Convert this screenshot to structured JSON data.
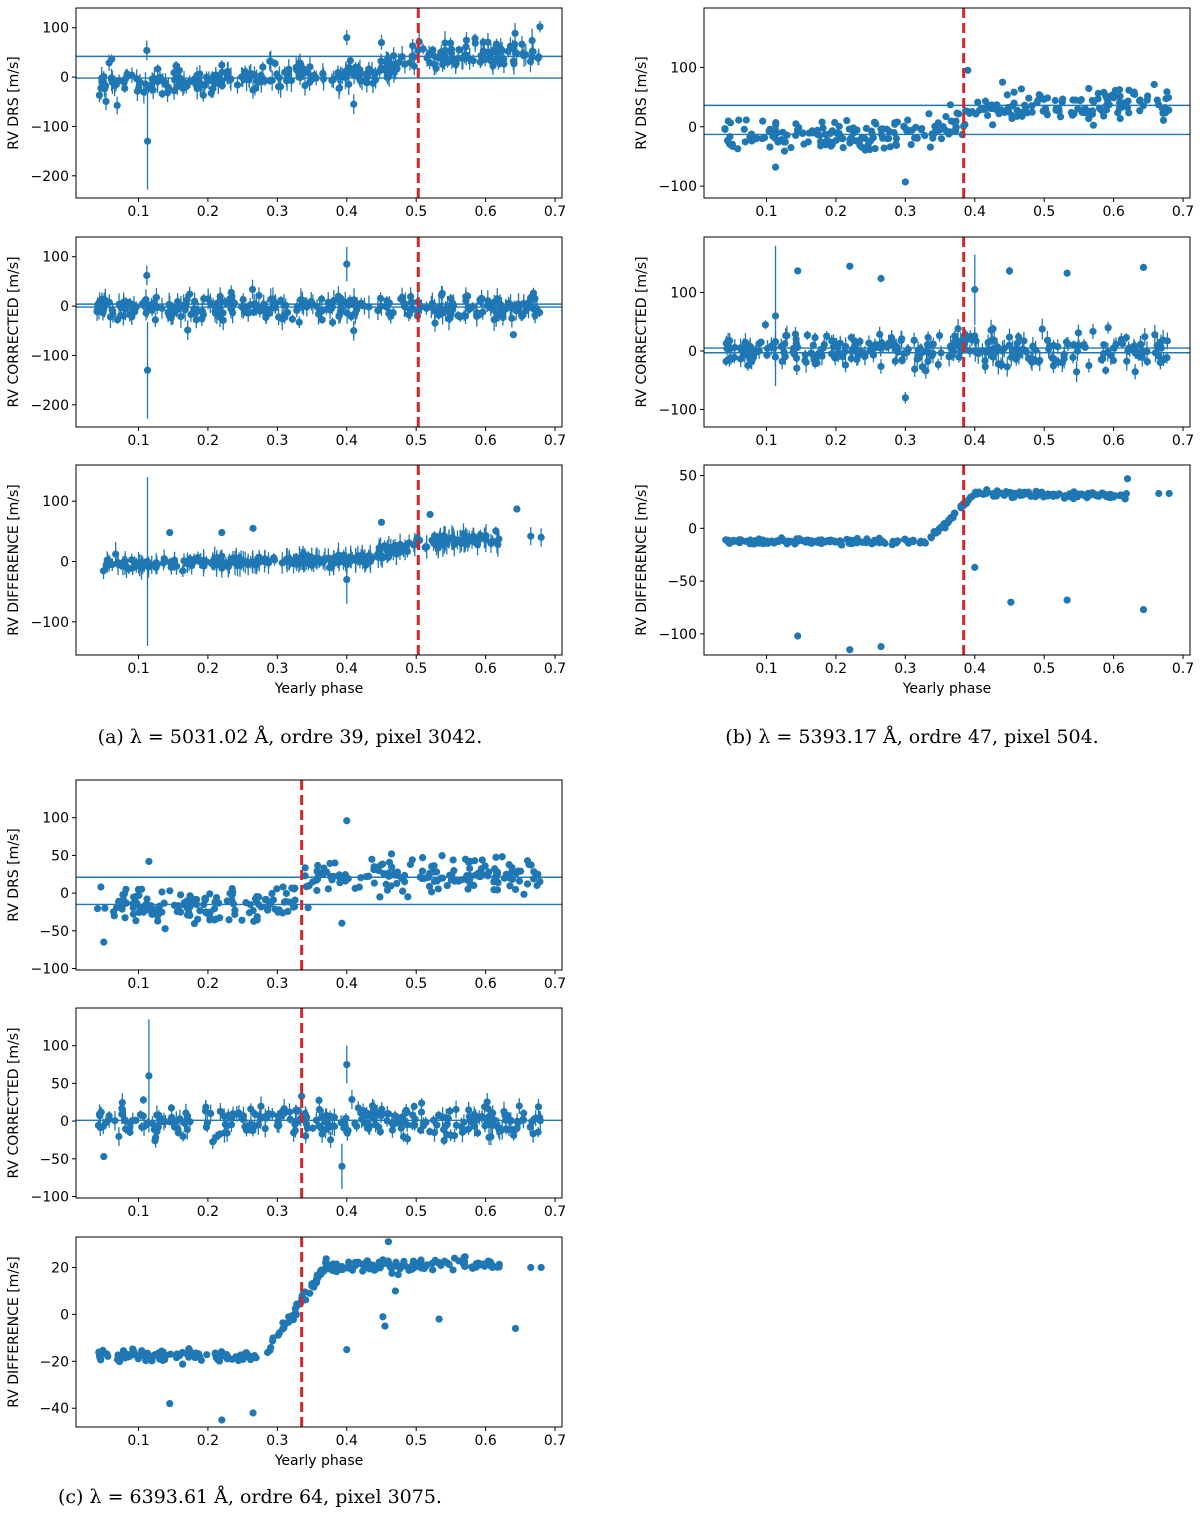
{
  "figure": {
    "captions": [
      "(a) λ = 5031.02 Å, ordre 39, pixel 3042.",
      "(b) λ = 5393.17 Å, ordre 47, pixel 504.",
      "(c) λ = 6393.61 Å, ordre 64, pixel 3075."
    ]
  },
  "colors": {
    "series": "#1f77b4",
    "marker": "#d62728",
    "axis": "#000000"
  },
  "chart_data": [
    {
      "panel": "a",
      "row": 1,
      "type": "scatter",
      "ylabel": "RV DRS [m/s]",
      "xlabel": "",
      "xlim": [
        0.01,
        0.71
      ],
      "ylim": [
        -245,
        140
      ],
      "xticks": [
        0.1,
        0.2,
        0.3,
        0.4,
        0.5,
        0.6,
        0.7
      ],
      "xtick_labels": [
        "0.1",
        "0.2",
        "0.3",
        "0.4",
        "0.5",
        "0.6",
        "0.7"
      ],
      "yticks": [
        -200,
        -100,
        0,
        100
      ],
      "ytick_labels": [
        "−200",
        "−100",
        "0",
        "100"
      ],
      "hlines": [
        42,
        -2
      ],
      "vline": 0.503,
      "gen": {
        "segments": [
          [
            0.04,
            0.35,
            -15,
            6
          ],
          [
            0.35,
            0.43,
            -5,
            10
          ],
          [
            0.43,
            0.5,
            5,
            35
          ],
          [
            0.5,
            0.6,
            45,
            45
          ],
          [
            0.6,
            0.68,
            45,
            50
          ]
        ],
        "n": 300,
        "noise": 14,
        "err": 16,
        "seed": 11
      },
      "extra": [
        [
          0.113,
          -130,
          98
        ],
        [
          0.112,
          54,
          20
        ],
        [
          0.4,
          80,
          15
        ],
        [
          0.41,
          -55,
          20
        ],
        [
          0.45,
          70,
          15
        ]
      ]
    },
    {
      "panel": "a",
      "row": 2,
      "type": "scatter",
      "ylabel": "RV CORRECTED [m/s]",
      "xlabel": "",
      "xlim": [
        0.01,
        0.71
      ],
      "ylim": [
        -245,
        140
      ],
      "xticks": [
        0.1,
        0.2,
        0.3,
        0.4,
        0.5,
        0.6,
        0.7
      ],
      "xtick_labels": [
        "0.1",
        "0.2",
        "0.3",
        "0.4",
        "0.5",
        "0.6",
        "0.7"
      ],
      "yticks": [
        -200,
        -100,
        0,
        100
      ],
      "ytick_labels": [
        "−200",
        "−100",
        "0",
        "100"
      ],
      "hlines": [
        4,
        -2
      ],
      "vline": 0.503,
      "gen": {
        "segments": [
          [
            0.04,
            0.68,
            -3,
            -3
          ]
        ],
        "n": 300,
        "noise": 13,
        "err": 16,
        "seed": 12
      },
      "extra": [
        [
          0.113,
          -130,
          98
        ],
        [
          0.112,
          62,
          20
        ],
        [
          0.4,
          85,
          35
        ],
        [
          0.41,
          -50,
          20
        ],
        [
          0.64,
          -58,
          5
        ]
      ]
    },
    {
      "panel": "a",
      "row": 3,
      "type": "scatter",
      "ylabel": "RV DIFFERENCE [m/s]",
      "xlabel": "Yearly phase",
      "xlim": [
        0.01,
        0.71
      ],
      "ylim": [
        -155,
        160
      ],
      "xticks": [
        0.1,
        0.2,
        0.3,
        0.4,
        0.5,
        0.6,
        0.7
      ],
      "xtick_labels": [
        "0.1",
        "0.2",
        "0.3",
        "0.4",
        "0.5",
        "0.6",
        "0.7"
      ],
      "yticks": [
        -100,
        0,
        100
      ],
      "ytick_labels": [
        "−100",
        "0",
        "100"
      ],
      "hlines": [],
      "vline": 0.503,
      "gen": {
        "segments": [
          [
            0.04,
            0.35,
            -5,
            0
          ],
          [
            0.35,
            0.43,
            0,
            5
          ],
          [
            0.43,
            0.5,
            5,
            30
          ],
          [
            0.5,
            0.62,
            35,
            35
          ]
        ],
        "n": 280,
        "noise": 5,
        "err": 14,
        "seed": 13
      },
      "extra": [
        [
          0.113,
          0,
          140
        ],
        [
          0.145,
          48,
          5
        ],
        [
          0.22,
          48,
          5
        ],
        [
          0.265,
          55,
          5
        ],
        [
          0.45,
          65,
          5
        ],
        [
          0.52,
          78,
          5
        ],
        [
          0.645,
          87,
          5
        ],
        [
          0.665,
          42,
          15
        ],
        [
          0.68,
          40,
          15
        ],
        [
          0.4,
          -30,
          40
        ]
      ]
    },
    {
      "panel": "b",
      "row": 1,
      "type": "scatter",
      "ylabel": "RV DRS [m/s]",
      "xlabel": "",
      "xlim": [
        0.01,
        0.71
      ],
      "ylim": [
        -120,
        200
      ],
      "xticks": [
        0.1,
        0.2,
        0.3,
        0.4,
        0.5,
        0.6,
        0.7
      ],
      "xtick_labels": [
        "0.1",
        "0.2",
        "0.3",
        "0.4",
        "0.5",
        "0.6",
        "0.7"
      ],
      "yticks": [
        -100,
        0,
        100
      ],
      "ytick_labels": [
        "−100",
        "0",
        "100"
      ],
      "hlines": [
        36,
        -13
      ],
      "vline": 0.384,
      "gen": {
        "segments": [
          [
            0.04,
            0.34,
            -15,
            -12
          ],
          [
            0.34,
            0.4,
            -10,
            25
          ],
          [
            0.4,
            0.68,
            30,
            45
          ]
        ],
        "n": 300,
        "noise": 13,
        "err": 3,
        "seed": 21
      },
      "extra": [
        [
          0.3,
          -93,
          3
        ],
        [
          0.39,
          95,
          3
        ],
        [
          0.113,
          -68,
          3
        ],
        [
          0.44,
          75,
          3
        ]
      ]
    },
    {
      "panel": "b",
      "row": 2,
      "type": "scatter",
      "ylabel": "RV CORRECTED [m/s]",
      "xlabel": "",
      "xlim": [
        0.01,
        0.71
      ],
      "ylim": [
        -130,
        195
      ],
      "xticks": [
        0.1,
        0.2,
        0.3,
        0.4,
        0.5,
        0.6,
        0.7
      ],
      "xtick_labels": [
        "0.1",
        "0.2",
        "0.3",
        "0.4",
        "0.5",
        "0.6",
        "0.7"
      ],
      "yticks": [
        -100,
        0,
        100
      ],
      "ytick_labels": [
        "−100",
        "0",
        "100"
      ],
      "hlines": [
        5,
        -3
      ],
      "vline": 0.384,
      "gen": {
        "segments": [
          [
            0.04,
            0.68,
            0,
            0
          ]
        ],
        "n": 300,
        "noise": 14,
        "err": 12,
        "seed": 22
      },
      "extra": [
        [
          0.145,
          137,
          5
        ],
        [
          0.22,
          145,
          5
        ],
        [
          0.265,
          124,
          5
        ],
        [
          0.45,
          137,
          7
        ],
        [
          0.533,
          133,
          5
        ],
        [
          0.643,
          143,
          5
        ],
        [
          0.113,
          60,
          120
        ],
        [
          0.3,
          -80,
          10
        ],
        [
          0.4,
          105,
          60
        ]
      ]
    },
    {
      "panel": "b",
      "row": 3,
      "type": "scatter",
      "ylabel": "RV DIFFERENCE [m/s]",
      "xlabel": "Yearly phase",
      "xlim": [
        0.01,
        0.71
      ],
      "ylim": [
        -120,
        60
      ],
      "xticks": [
        0.1,
        0.2,
        0.3,
        0.4,
        0.5,
        0.6,
        0.7
      ],
      "xtick_labels": [
        "0.1",
        "0.2",
        "0.3",
        "0.4",
        "0.5",
        "0.6",
        "0.7"
      ],
      "yticks": [
        -100,
        -50,
        0,
        50
      ],
      "ytick_labels": [
        "−100",
        "−50",
        "0",
        "50"
      ],
      "hlines": [],
      "vline": 0.384,
      "gen": {
        "segments": [
          [
            0.04,
            0.33,
            -12,
            -13
          ],
          [
            0.33,
            0.4,
            -12,
            32
          ],
          [
            0.4,
            0.62,
            33,
            31
          ]
        ],
        "n": 280,
        "noise": 1.3,
        "err": 2,
        "seed": 23
      },
      "extra": [
        [
          0.145,
          -102,
          1
        ],
        [
          0.22,
          -115,
          1
        ],
        [
          0.265,
          -112,
          1
        ],
        [
          0.4,
          -37,
          1
        ],
        [
          0.452,
          -70,
          1
        ],
        [
          0.533,
          -68,
          1
        ],
        [
          0.643,
          -77,
          1
        ],
        [
          0.62,
          47,
          1
        ],
        [
          0.665,
          33,
          1
        ],
        [
          0.68,
          33,
          1
        ]
      ]
    },
    {
      "panel": "c",
      "row": 1,
      "type": "scatter",
      "ylabel": "RV DRS [m/s]",
      "xlabel": "",
      "xlim": [
        0.01,
        0.71
      ],
      "ylim": [
        -102,
        150
      ],
      "xticks": [
        0.1,
        0.2,
        0.3,
        0.4,
        0.5,
        0.6,
        0.7
      ],
      "xtick_labels": [
        "0.1",
        "0.2",
        "0.3",
        "0.4",
        "0.5",
        "0.6",
        "0.7"
      ],
      "yticks": [
        -100,
        -50,
        0,
        50,
        100
      ],
      "ytick_labels": [
        "−100",
        "−50",
        "0",
        "50",
        "100"
      ],
      "hlines": [
        21,
        -15
      ],
      "vline": 0.335,
      "gen": {
        "segments": [
          [
            0.04,
            0.3,
            -18,
            -18
          ],
          [
            0.3,
            0.36,
            -15,
            20
          ],
          [
            0.36,
            0.68,
            25,
            25
          ]
        ],
        "n": 300,
        "noise": 11,
        "err": 3,
        "seed": 31
      },
      "extra": [
        [
          0.05,
          -65,
          2
        ],
        [
          0.4,
          96,
          2
        ],
        [
          0.393,
          -40,
          2
        ],
        [
          0.115,
          42,
          2
        ]
      ]
    },
    {
      "panel": "c",
      "row": 2,
      "type": "scatter",
      "ylabel": "RV CORRECTED [m/s]",
      "xlabel": "",
      "xlim": [
        0.01,
        0.71
      ],
      "ylim": [
        -102,
        150
      ],
      "xticks": [
        0.1,
        0.2,
        0.3,
        0.4,
        0.5,
        0.6,
        0.7
      ],
      "xtick_labels": [
        "0.1",
        "0.2",
        "0.3",
        "0.4",
        "0.5",
        "0.6",
        "0.7"
      ],
      "yticks": [
        -100,
        -50,
        0,
        50,
        100
      ],
      "ytick_labels": [
        "−100",
        "−50",
        "0",
        "50",
        "100"
      ],
      "hlines": [
        1
      ],
      "vline": 0.335,
      "gen": {
        "segments": [
          [
            0.04,
            0.68,
            0,
            0
          ]
        ],
        "n": 300,
        "noise": 11,
        "err": 9,
        "seed": 32
      },
      "extra": [
        [
          0.05,
          -47,
          3
        ],
        [
          0.115,
          60,
          75
        ],
        [
          0.4,
          75,
          25
        ],
        [
          0.393,
          -60,
          30
        ],
        [
          0.335,
          33,
          5
        ]
      ]
    },
    {
      "panel": "c",
      "row": 3,
      "type": "scatter",
      "ylabel": "RV DIFFERENCE [m/s]",
      "xlabel": "Yearly phase",
      "xlim": [
        0.01,
        0.71
      ],
      "ylim": [
        -48,
        33
      ],
      "xticks": [
        0.1,
        0.2,
        0.3,
        0.4,
        0.5,
        0.6,
        0.7
      ],
      "xtick_labels": [
        "0.1",
        "0.2",
        "0.3",
        "0.4",
        "0.5",
        "0.6",
        "0.7"
      ],
      "yticks": [
        -40,
        -20,
        0,
        20
      ],
      "ytick_labels": [
        "−40",
        "−20",
        "0",
        "20"
      ],
      "hlines": [],
      "vline": 0.335,
      "gen": {
        "segments": [
          [
            0.04,
            0.28,
            -17,
            -18
          ],
          [
            0.28,
            0.37,
            -17,
            20
          ],
          [
            0.37,
            0.62,
            21,
            21
          ]
        ],
        "n": 280,
        "noise": 1.2,
        "err": 0.6,
        "seed": 33
      },
      "extra": [
        [
          0.145,
          -38,
          0.5
        ],
        [
          0.22,
          -45,
          0.5
        ],
        [
          0.265,
          -42,
          0.5
        ],
        [
          0.4,
          -15,
          0.5
        ],
        [
          0.452,
          -1,
          0.5
        ],
        [
          0.455,
          -5,
          0.5
        ],
        [
          0.47,
          10,
          0.5
        ],
        [
          0.533,
          -2,
          0.5
        ],
        [
          0.643,
          -6,
          0.5
        ],
        [
          0.46,
          31,
          0.5
        ],
        [
          0.665,
          20,
          0.5
        ],
        [
          0.68,
          20,
          0.5
        ]
      ]
    }
  ]
}
